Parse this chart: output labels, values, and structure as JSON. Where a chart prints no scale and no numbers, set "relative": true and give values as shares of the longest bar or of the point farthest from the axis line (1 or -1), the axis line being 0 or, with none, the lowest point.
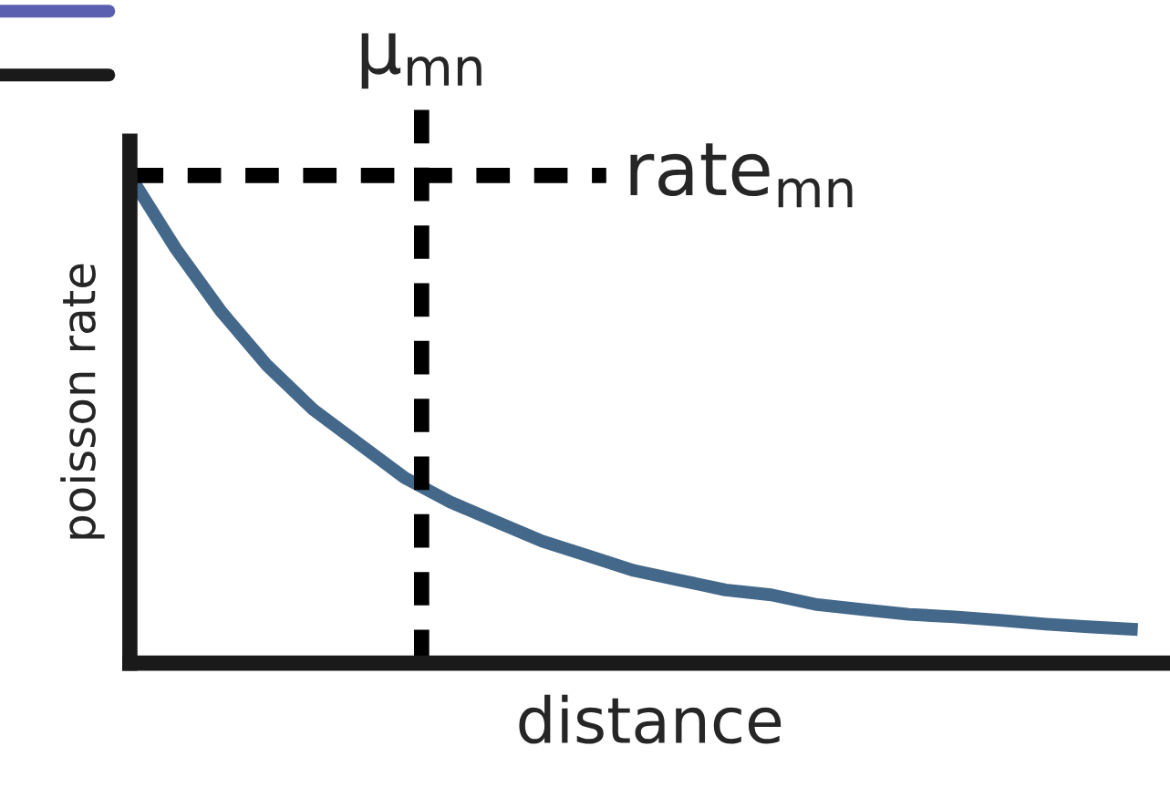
{
  "chart_data": {
    "type": "line",
    "relative": true,
    "xlabel": "distance",
    "ylabel": "poisson rate",
    "categories": [
      null,
      null,
      null,
      null,
      null,
      null,
      null,
      null,
      null,
      null,
      null,
      null,
      null,
      null,
      null,
      null,
      null,
      null,
      null,
      null,
      null,
      null,
      null
    ],
    "series": [
      {
        "color": "#44688a",
        "values": [
          1,
          0.85,
          0.72,
          0.61,
          0.52,
          0.45,
          0.38,
          0.33,
          0.29,
          0.25,
          0.22,
          0.19,
          0.17,
          0.15,
          0.14,
          0.12,
          0.11,
          0.1,
          0.095,
          0.088,
          0.08,
          0.074,
          0.069
        ]
      }
    ],
    "ref_lines": [
      {
        "axis": "y",
        "value": 1,
        "label": "rate$_{mn}$",
        "color": "#000000",
        "line_style": "dashed"
      }
    ],
    "annotations": [
      "μ$_{mn}$"
    ],
    "legend": false,
    "tick_labels": false,
    "marker": "none",
    "line_style": "solid"
  }
}
